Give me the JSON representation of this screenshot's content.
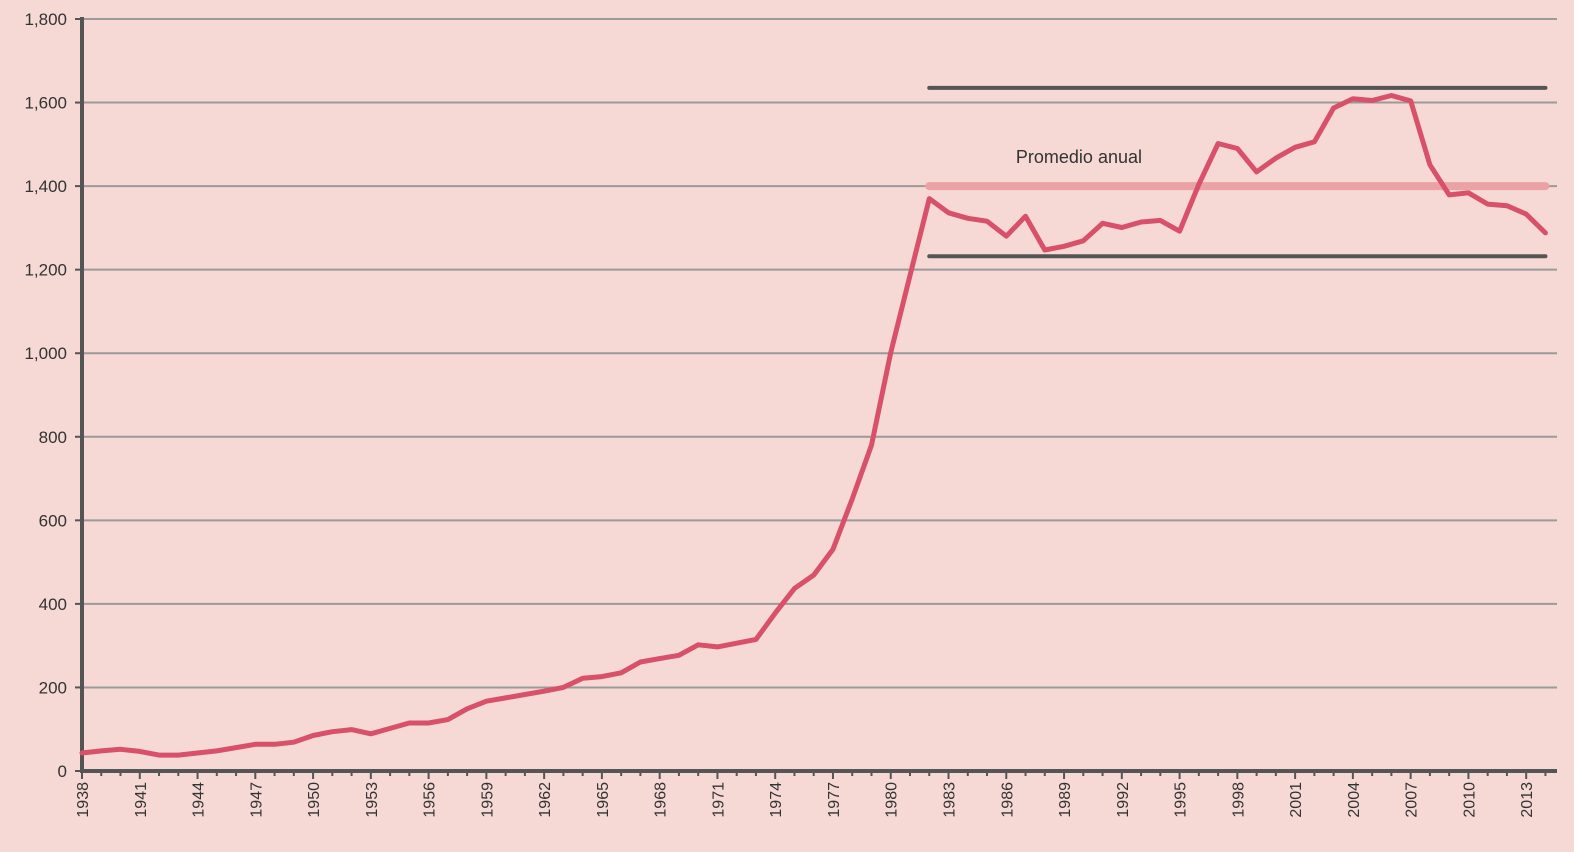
{
  "chart_data": {
    "type": "line",
    "title": "",
    "xlabel": "",
    "ylabel": "",
    "xlim": [
      1938,
      2014.6
    ],
    "ylim": [
      0,
      1800
    ],
    "y_ticks": [
      0,
      200,
      400,
      600,
      800,
      1000,
      1200,
      1400,
      1600,
      1800
    ],
    "y_tick_labels": [
      "0",
      "200",
      "400",
      "600",
      "800",
      "1,000",
      "1,200",
      "1,400",
      "1,600",
      "1,800"
    ],
    "x_tick_labels": [
      "1938",
      "1941",
      "1944",
      "1947",
      "1950",
      "1953",
      "1956",
      "1959",
      "1962",
      "1965",
      "1968",
      "1971",
      "1974",
      "1977",
      "1980",
      "1983",
      "1986",
      "1989",
      "1992",
      "1995",
      "1998",
      "2001",
      "2004",
      "2007",
      "2010",
      "2013"
    ],
    "grid": true,
    "series": [
      {
        "name": "",
        "color": "#d9506a",
        "x": [
          1938,
          1939,
          1940,
          1941,
          1942,
          1943,
          1944,
          1945,
          1946,
          1947,
          1948,
          1949,
          1950,
          1951,
          1952,
          1953,
          1954,
          1955,
          1956,
          1957,
          1958,
          1959,
          1960,
          1961,
          1962,
          1963,
          1964,
          1965,
          1966,
          1967,
          1968,
          1969,
          1970,
          1971,
          1972,
          1973,
          1974,
          1975,
          1976,
          1977,
          1978,
          1979,
          1980,
          1981,
          1982,
          1983,
          1984,
          1985,
          1986,
          1987,
          1988,
          1989,
          1990,
          1991,
          1992,
          1993,
          1994,
          1995,
          1996,
          1997,
          1998,
          1999,
          2000,
          2001,
          2002,
          2003,
          2004,
          2005,
          2006,
          2007,
          2008,
          2009,
          2010,
          2011,
          2012,
          2013,
          2014
        ],
        "y": [
          43,
          48,
          52,
          47,
          38,
          38,
          43,
          48,
          56,
          64,
          64,
          69,
          85,
          94,
          99,
          89,
          102,
          115,
          115,
          123,
          149,
          167,
          175,
          183,
          191,
          200,
          222,
          226,
          235,
          261,
          269,
          277,
          302,
          297,
          306,
          315,
          378,
          437,
          469,
          531,
          651,
          780,
          1001,
          1186,
          1370,
          1336,
          1323,
          1316,
          1280,
          1328,
          1247,
          1256,
          1269,
          1311,
          1301,
          1314,
          1318,
          1292,
          1404,
          1502,
          1490,
          1434,
          1467,
          1493,
          1506,
          1587,
          1609,
          1605,
          1617,
          1604,
          1451,
          1379,
          1384,
          1357,
          1353,
          1333,
          1288
        ]
      }
    ],
    "reference_lines": [
      {
        "role": "upper-band",
        "y": 1635,
        "x_start": 1982,
        "x_end": 2014,
        "color": "#555555"
      },
      {
        "role": "annual-average",
        "label": "Promedio anual",
        "y": 1400,
        "x_start": 1982,
        "x_end": 2014,
        "color": "#eaa2a5"
      },
      {
        "role": "lower-band",
        "y": 1232,
        "x_start": 1982,
        "x_end": 2014,
        "color": "#555555"
      }
    ],
    "annotations": [
      {
        "text": "Promedio anual",
        "x": 1986.5,
        "y": 1455
      }
    ]
  }
}
